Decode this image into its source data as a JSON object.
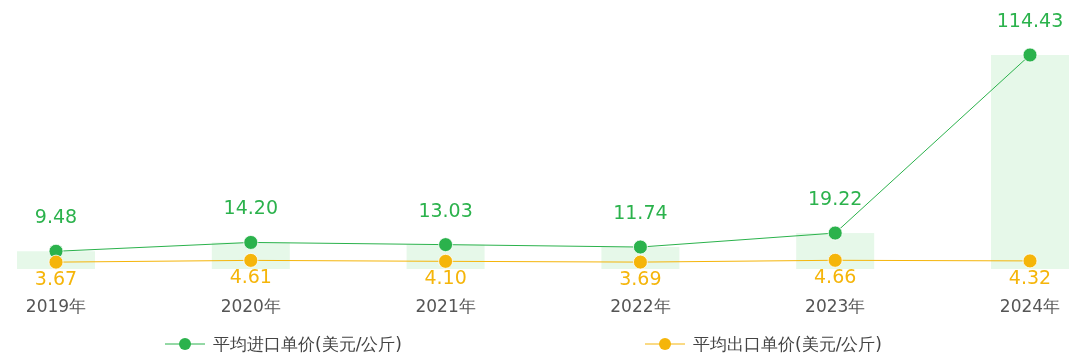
{
  "chart_data": {
    "type": "line",
    "categories": [
      "2019年",
      "2020年",
      "2021年",
      "2022年",
      "2023年",
      "2024年"
    ],
    "series": [
      {
        "type": "bar",
        "color": "#e6f8e9",
        "values": [
          9.48,
          14.2,
          13.03,
          11.74,
          19.22,
          114.43
        ]
      },
      {
        "name": "平均进口单价(美元/公斤)",
        "color": "#2bb24c",
        "values": [
          9.48,
          14.2,
          13.03,
          11.74,
          19.22,
          114.43
        ],
        "value_labels": [
          "9.48",
          "14.20",
          "13.03",
          "11.74",
          "19.22",
          "114.43"
        ]
      },
      {
        "name": "平均出口单价(美元/公斤)",
        "color": "#f5b50a",
        "values": [
          3.67,
          4.61,
          4.1,
          3.69,
          4.66,
          4.32
        ],
        "value_labels": [
          "3.67",
          "4.61",
          "4.10",
          "3.69",
          "4.66",
          "4.32"
        ]
      }
    ],
    "marker": "circle",
    "legend": "bottom",
    "tick_labels": "x"
  }
}
